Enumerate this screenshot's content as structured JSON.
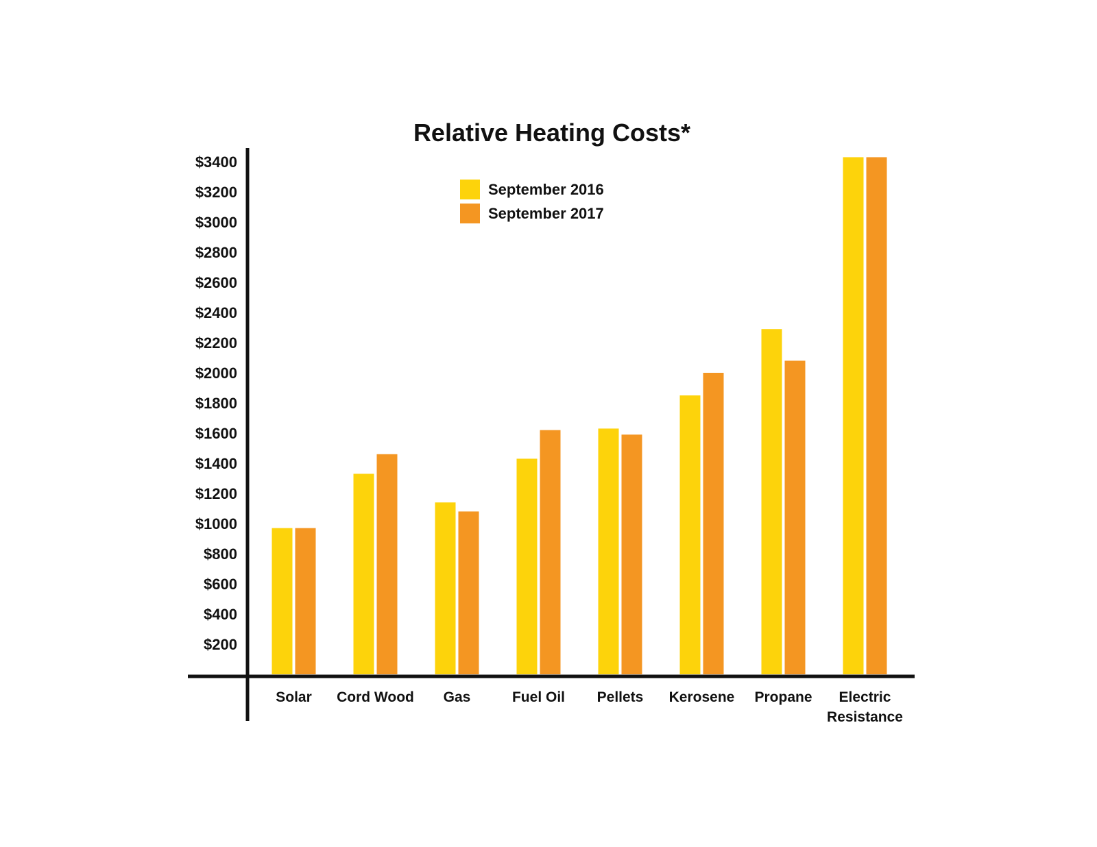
{
  "chart_data": {
    "type": "bar",
    "title": "Relative Heating Costs*",
    "xlabel": "",
    "ylabel": "",
    "categories": [
      [
        "Solar"
      ],
      [
        "Cord Wood"
      ],
      [
        "Gas"
      ],
      [
        "Fuel Oil"
      ],
      [
        "Pellets"
      ],
      [
        "Kerosene"
      ],
      [
        "Propane"
      ],
      [
        "Electric",
        "Resistance"
      ]
    ],
    "series": [
      {
        "name": "September 2016",
        "color": "#FDD30B",
        "values": [
          970,
          1330,
          1140,
          1430,
          1630,
          1850,
          2290,
          3430
        ]
      },
      {
        "name": "September 2017",
        "color": "#F49622",
        "values": [
          970,
          1460,
          1080,
          1620,
          1590,
          2000,
          2080,
          3430
        ]
      }
    ],
    "y_ticks": [
      "$200",
      "$400",
      "$600",
      "$800",
      "$1000",
      "$1200",
      "$1400",
      "$1600",
      "$1800",
      "$2000",
      "$2200",
      "$2400",
      "$2600",
      "$2800",
      "$3000",
      "$3200",
      "$3400"
    ],
    "y_tick_values": [
      200,
      400,
      600,
      800,
      1000,
      1200,
      1400,
      1600,
      1800,
      2000,
      2200,
      2400,
      2600,
      2800,
      3000,
      3200,
      3400
    ],
    "ylim": [
      0,
      3500
    ],
    "grid": false,
    "legend_position": "top-center"
  }
}
